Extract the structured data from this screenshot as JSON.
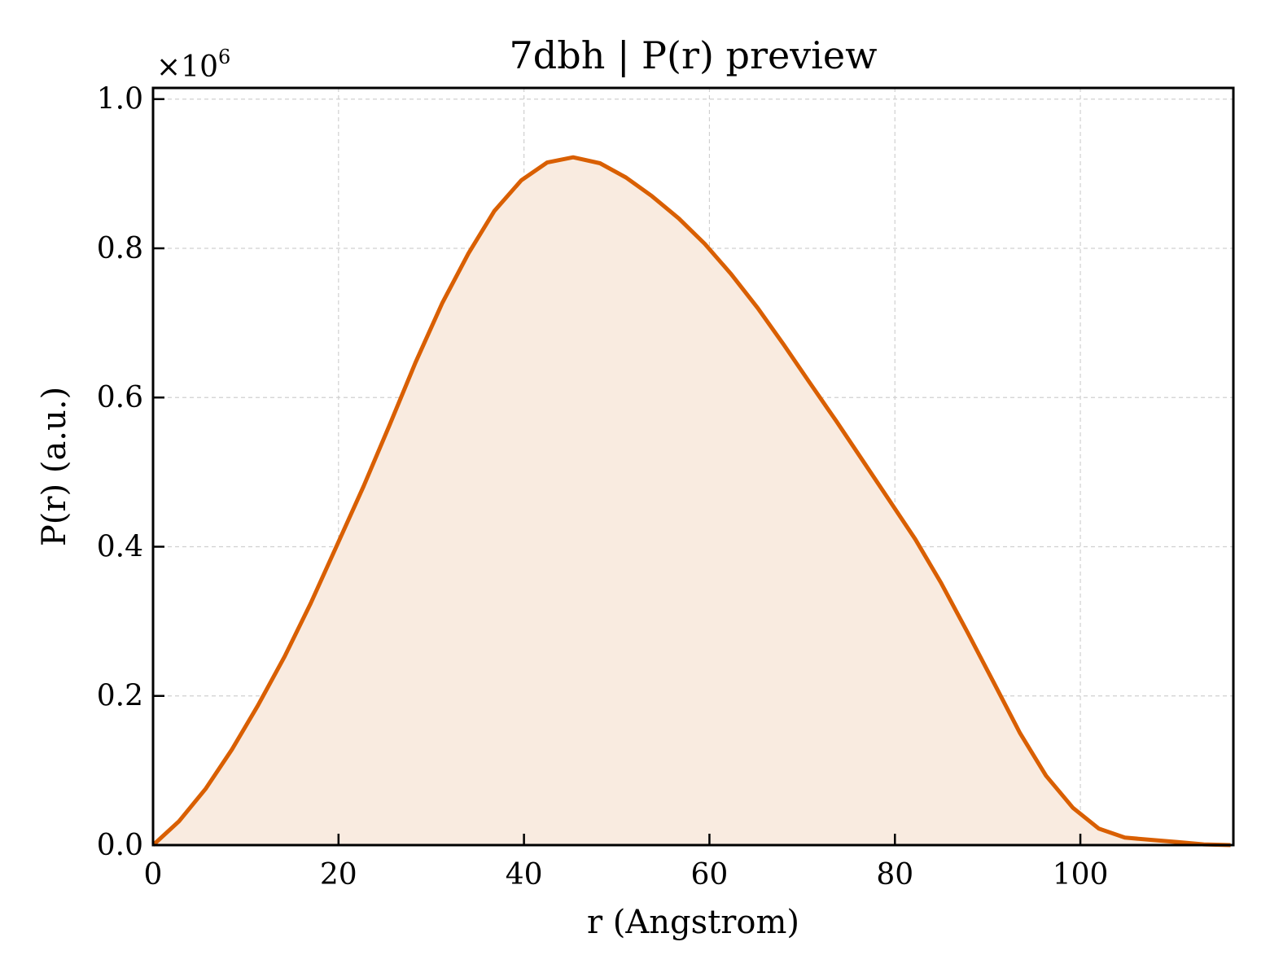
{
  "chart_data": {
    "type": "area",
    "title": "7dbh | P(r) preview",
    "xlabel": "r (Angstrom)",
    "ylabel": "P(r) (a.u.)",
    "y_multiplier_text": "×10",
    "y_multiplier_exp": "6",
    "xlim": [
      0,
      116.5
    ],
    "ylim": [
      0,
      1.015
    ],
    "xticks": [
      0,
      20,
      40,
      60,
      80,
      100
    ],
    "xtick_labels": [
      "0",
      "20",
      "40",
      "60",
      "80",
      "100"
    ],
    "yticks": [
      0.0,
      0.2,
      0.4,
      0.6,
      0.8,
      1.0
    ],
    "ytick_labels": [
      "0.0",
      "0.2",
      "0.4",
      "0.6",
      "0.8",
      "1.0"
    ],
    "grid": true,
    "line_color": "#d95f02",
    "fill_color": "#f9ebe0",
    "series": [
      {
        "x": [
          0,
          2.8,
          5.7,
          8.5,
          11.3,
          14.2,
          17.0,
          19.8,
          22.7,
          25.5,
          28.3,
          31.2,
          34.0,
          36.8,
          39.7,
          42.5,
          45.3,
          48.2,
          51.0,
          53.8,
          56.7,
          59.5,
          62.3,
          65.2,
          68.0,
          70.8,
          73.7,
          76.5,
          79.3,
          82.2,
          85.0,
          87.8,
          90.7,
          93.5,
          96.3,
          99.2,
          102.0,
          104.8,
          107.7,
          110.5,
          113.3,
          116.2
        ],
        "y": [
          0.0,
          0.032,
          0.076,
          0.128,
          0.187,
          0.253,
          0.324,
          0.401,
          0.481,
          0.563,
          0.647,
          0.727,
          0.793,
          0.85,
          0.891,
          0.915,
          0.922,
          0.914,
          0.895,
          0.87,
          0.84,
          0.806,
          0.766,
          0.72,
          0.671,
          0.62,
          0.568,
          0.516,
          0.464,
          0.41,
          0.351,
          0.286,
          0.217,
          0.15,
          0.093,
          0.05,
          0.022,
          0.01,
          0.007,
          0.004,
          0.001,
          0.0
        ]
      }
    ]
  }
}
